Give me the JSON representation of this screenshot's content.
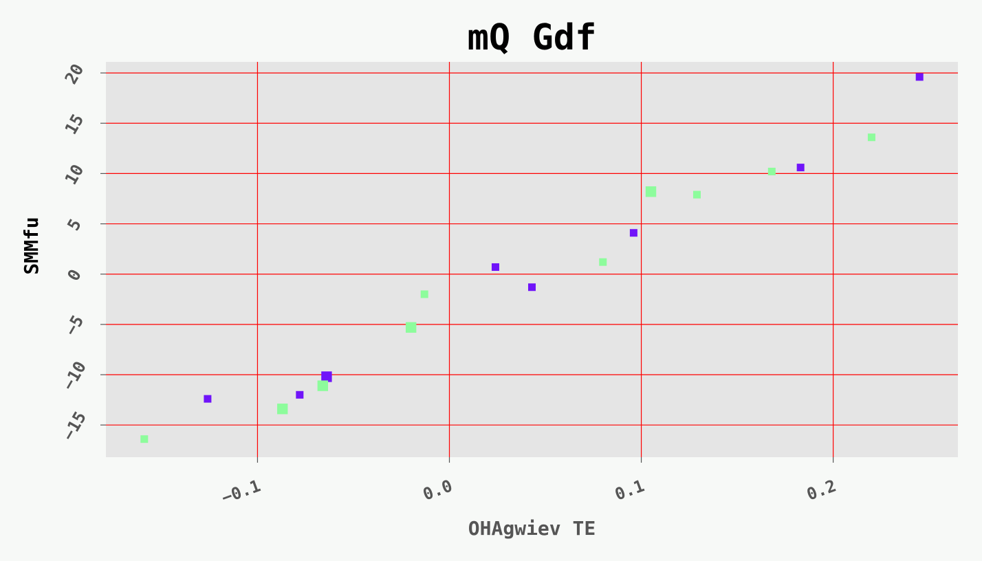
{
  "chart_data": {
    "type": "scatter",
    "title": "mQ Gdf",
    "xlabel": "OHAgwiev TE",
    "ylabel": "SMMfu",
    "xlim": [
      -0.179,
      0.265
    ],
    "ylim": [
      -18.2,
      21.1
    ],
    "xticks": [
      "−0.1",
      "0.0",
      "0.1",
      "0.2"
    ],
    "xtick_values": [
      -0.1,
      0.0,
      0.1,
      0.2
    ],
    "yticks": [
      "−15",
      "−10",
      "−5",
      "0",
      "5",
      "10",
      "15",
      "20"
    ],
    "ytick_values": [
      -15,
      -10,
      -5,
      0,
      5,
      10,
      15,
      20
    ],
    "grid": true,
    "colors": {
      "background": "#f7f9f7",
      "plot_bg": "#e5e5e5",
      "grid": "#ff0000"
    },
    "series": [
      {
        "color": "#7014f9",
        "points": [
          {
            "x": -0.126,
            "y": -12.4,
            "s": 1
          },
          {
            "x": -0.078,
            "y": -12.0,
            "s": 1
          },
          {
            "x": -0.064,
            "y": -10.2,
            "s": 1.4
          },
          {
            "x": 0.024,
            "y": 0.7,
            "s": 1
          },
          {
            "x": 0.043,
            "y": -1.3,
            "s": 1
          },
          {
            "x": 0.096,
            "y": 4.1,
            "s": 1
          },
          {
            "x": 0.183,
            "y": 10.6,
            "s": 1
          },
          {
            "x": 0.245,
            "y": 19.6,
            "s": 1
          }
        ]
      },
      {
        "color": "#8dfc9c",
        "points": [
          {
            "x": -0.159,
            "y": -16.4,
            "s": 1
          },
          {
            "x": -0.087,
            "y": -13.4,
            "s": 1.4
          },
          {
            "x": -0.066,
            "y": -11.1,
            "s": 1.4
          },
          {
            "x": -0.02,
            "y": -5.3,
            "s": 1.4
          },
          {
            "x": -0.013,
            "y": -2.0,
            "s": 1
          },
          {
            "x": 0.08,
            "y": 1.2,
            "s": 1
          },
          {
            "x": 0.105,
            "y": 8.2,
            "s": 1.4
          },
          {
            "x": 0.129,
            "y": 7.9,
            "s": 1
          },
          {
            "x": 0.168,
            "y": 10.2,
            "s": 1
          },
          {
            "x": 0.22,
            "y": 13.6,
            "s": 1
          }
        ]
      }
    ]
  }
}
